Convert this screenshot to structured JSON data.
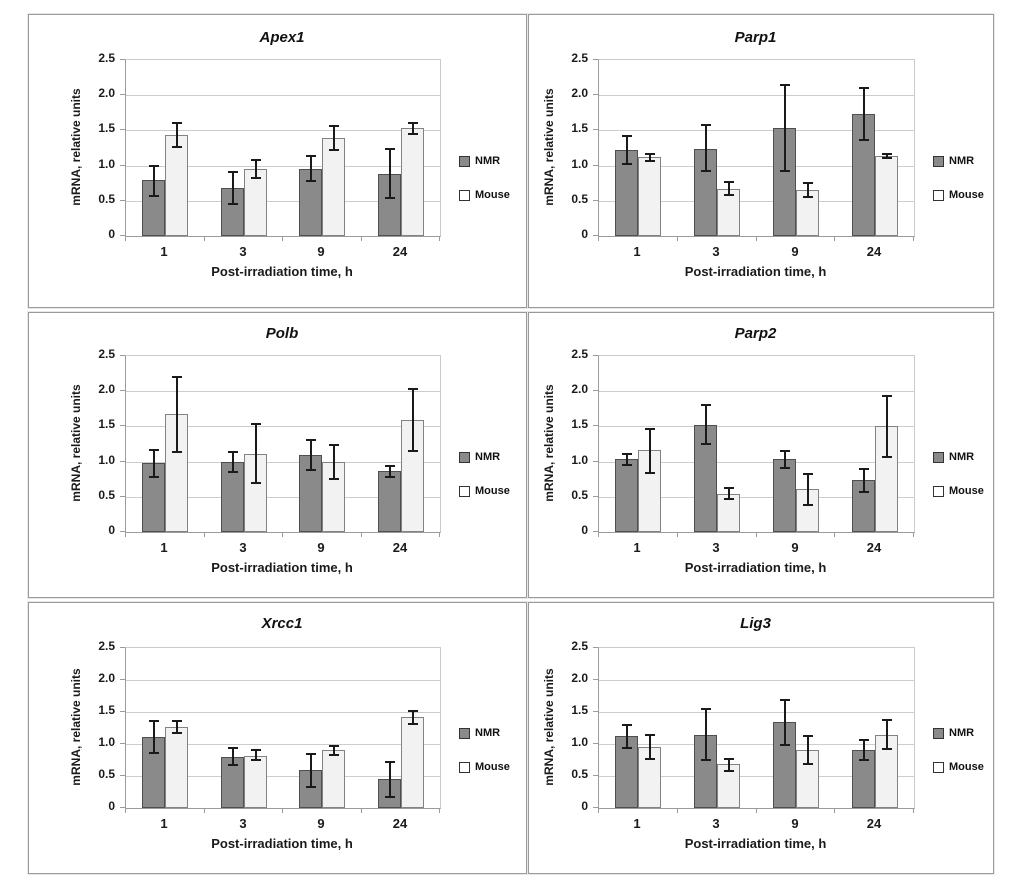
{
  "figure": {
    "legend": {
      "nmr_label": "NMR",
      "mouse_label": "Mouse"
    },
    "colors": {
      "nmr_fill": "#8a8a8a",
      "nmr_border": "#4f4f4f",
      "mouse_fill": "#f2f2f2",
      "mouse_border": "#828282",
      "grid": "#cdcdcd",
      "axis": "#9b9b9b",
      "error_bar": "#1a1a1a"
    },
    "yticks": [
      "2.5",
      "2.0",
      "1.5",
      "1.0",
      "0.5",
      "0"
    ]
  },
  "chart_data": [
    {
      "type": "bar",
      "title": "Apex1",
      "categories": [
        "1",
        "3",
        "9",
        "24"
      ],
      "xlabel": "Post-irradiation time, h",
      "ylabel": "mRNA, relative units",
      "ylim": [
        0,
        2.5
      ],
      "grid": true,
      "legend_position": "right",
      "series": [
        {
          "name": "NMR",
          "values": [
            0.79,
            0.68,
            0.95,
            0.88
          ],
          "errors": [
            0.21,
            0.23,
            0.18,
            0.35
          ]
        },
        {
          "name": "Mouse",
          "values": [
            1.44,
            0.95,
            1.39,
            1.53
          ],
          "errors": [
            0.17,
            0.13,
            0.17,
            0.08
          ]
        }
      ]
    },
    {
      "type": "bar",
      "title": "Parp1",
      "categories": [
        "1",
        "3",
        "9",
        "24"
      ],
      "xlabel": "Post-irradiation time, h",
      "ylabel": "mRNA, relative units",
      "ylim": [
        0,
        2.5
      ],
      "grid": true,
      "legend_position": "right",
      "series": [
        {
          "name": "NMR",
          "values": [
            1.22,
            1.24,
            1.53,
            1.73
          ],
          "errors": [
            0.2,
            0.33,
            0.61,
            0.37
          ]
        },
        {
          "name": "Mouse",
          "values": [
            1.12,
            0.67,
            0.65,
            1.13
          ],
          "errors": [
            0.05,
            0.09,
            0.1,
            0.03
          ]
        }
      ]
    },
    {
      "type": "bar",
      "title": "Polb",
      "categories": [
        "1",
        "3",
        "9",
        "24"
      ],
      "xlabel": "Post-irradiation time, h",
      "ylabel": "mRNA, relative units",
      "ylim": [
        0,
        2.5
      ],
      "grid": true,
      "legend_position": "right",
      "series": [
        {
          "name": "NMR",
          "values": [
            0.98,
            0.99,
            1.1,
            0.86
          ],
          "errors": [
            0.19,
            0.14,
            0.21,
            0.08
          ]
        },
        {
          "name": "Mouse",
          "values": [
            1.67,
            1.11,
            1.0,
            1.59
          ],
          "errors": [
            0.53,
            0.42,
            0.24,
            0.44
          ]
        }
      ]
    },
    {
      "type": "bar",
      "title": "Parp2",
      "categories": [
        "1",
        "3",
        "9",
        "24"
      ],
      "xlabel": "Post-irradiation time, h",
      "ylabel": "mRNA, relative units",
      "ylim": [
        0,
        2.5
      ],
      "grid": true,
      "legend_position": "right",
      "series": [
        {
          "name": "NMR",
          "values": [
            1.03,
            1.52,
            1.03,
            0.74
          ],
          "errors": [
            0.08,
            0.28,
            0.12,
            0.16
          ]
        },
        {
          "name": "Mouse",
          "values": [
            1.16,
            0.54,
            0.61,
            1.5
          ],
          "errors": [
            0.31,
            0.08,
            0.22,
            0.43
          ]
        }
      ]
    },
    {
      "type": "bar",
      "title": "Xrcc1",
      "categories": [
        "1",
        "3",
        "9",
        "24"
      ],
      "xlabel": "Post-irradiation time, h",
      "ylabel": "mRNA, relative units",
      "ylim": [
        0,
        2.5
      ],
      "grid": true,
      "legend_position": "right",
      "series": [
        {
          "name": "NMR",
          "values": [
            1.11,
            0.8,
            0.59,
            0.45
          ],
          "errors": [
            0.25,
            0.13,
            0.26,
            0.27
          ]
        },
        {
          "name": "Mouse",
          "values": [
            1.27,
            0.82,
            0.9,
            1.42
          ],
          "errors": [
            0.09,
            0.08,
            0.07,
            0.1
          ]
        }
      ]
    },
    {
      "type": "bar",
      "title": "Lig3",
      "categories": [
        "1",
        "3",
        "9",
        "24"
      ],
      "xlabel": "Post-irradiation time, h",
      "ylabel": "mRNA, relative units",
      "ylim": [
        0,
        2.5
      ],
      "grid": true,
      "legend_position": "right",
      "series": [
        {
          "name": "NMR",
          "values": [
            1.12,
            1.14,
            1.34,
            0.9
          ],
          "errors": [
            0.18,
            0.4,
            0.35,
            0.16
          ]
        },
        {
          "name": "Mouse",
          "values": [
            0.95,
            0.68,
            0.91,
            1.14
          ],
          "errors": [
            0.19,
            0.09,
            0.22,
            0.23
          ]
        }
      ]
    }
  ]
}
